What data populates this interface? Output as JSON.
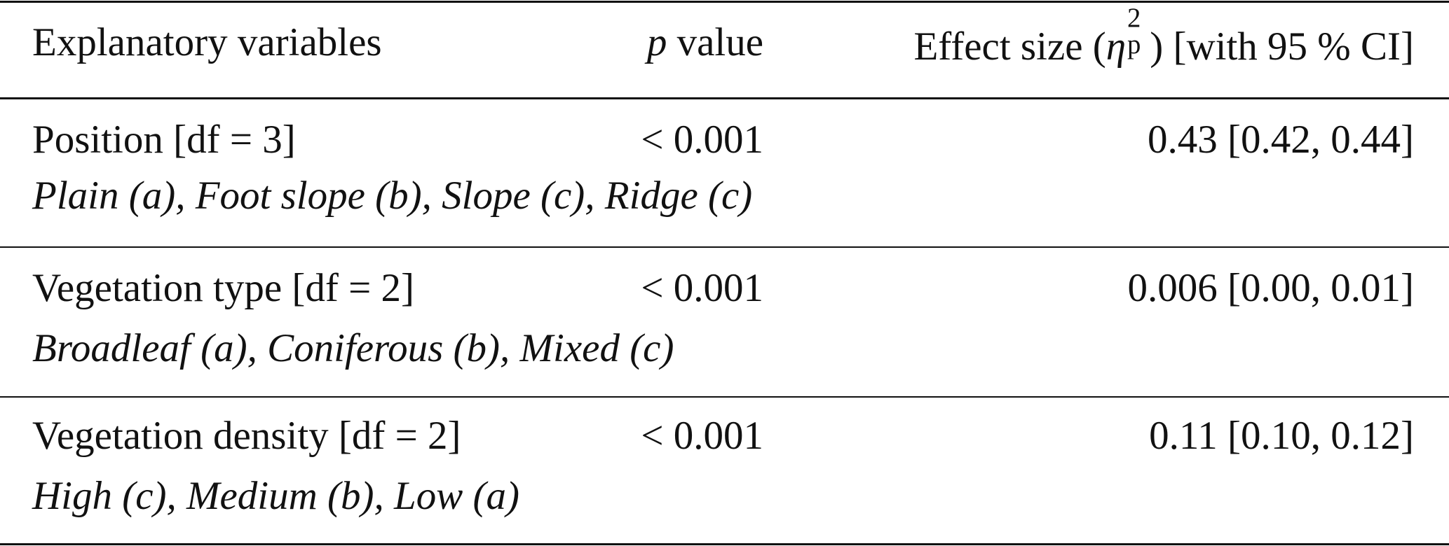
{
  "table": {
    "header": {
      "variables": "Explanatory variables",
      "p_value": {
        "symbol": "p",
        "text": "value"
      },
      "effect_size": {
        "before": "Effect size (",
        "symbol": "η",
        "sup": "2",
        "sub": "p",
        "after": ") [with 95 % CI]"
      }
    },
    "rows": [
      {
        "variable": "Position [df = 3]",
        "p": "< 0.001",
        "effect": "0.43 [0.42, 0.44]",
        "levels": "Plain (a), Foot slope (b), Slope (c), Ridge (c)"
      },
      {
        "variable": "Vegetation type [df = 2]",
        "p": "< 0.001",
        "effect": "0.006 [0.00, 0.01]",
        "levels": "Broadleaf (a), Coniferous (b), Mixed (c)"
      },
      {
        "variable": "Vegetation density [df = 2]",
        "p": "< 0.001",
        "effect": "0.11 [0.10, 0.12]",
        "levels": "High (c), Medium (b), Low (a)"
      }
    ]
  }
}
